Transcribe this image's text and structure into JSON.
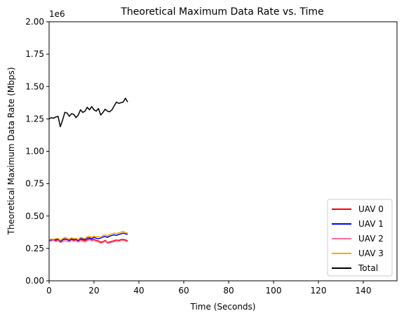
{
  "chart_data": {
    "type": "line",
    "title": "Theoretical Maximum Data Rate vs. Time",
    "xlabel": "Time (Seconds)",
    "ylabel": "Theoretical Maximum Data Rate (Mbps)",
    "y_offset_label": "1e6",
    "xlim": [
      0,
      155
    ],
    "ylim": [
      0,
      2000000
    ],
    "xticks": [
      0,
      20,
      40,
      60,
      80,
      100,
      120,
      140
    ],
    "xtick_labels": [
      "0",
      "20",
      "40",
      "60",
      "80",
      "100",
      "120",
      "140"
    ],
    "yticks": [
      0,
      250000,
      500000,
      750000,
      1000000,
      1250000,
      1500000,
      1750000,
      2000000
    ],
    "ytick_labels": [
      "0.00",
      "0.25",
      "0.50",
      "0.75",
      "1.00",
      "1.25",
      "1.50",
      "1.75",
      "2.00"
    ],
    "grid": false,
    "legend_position": "lower-right",
    "x": [
      0,
      1,
      2,
      3,
      4,
      5,
      6,
      7,
      8,
      9,
      10,
      11,
      12,
      13,
      14,
      15,
      16,
      17,
      18,
      19,
      20,
      21,
      22,
      23,
      24,
      25,
      26,
      27,
      28,
      29,
      30,
      31,
      32,
      33,
      34,
      35
    ],
    "series": [
      {
        "name": "UAV 0",
        "color": "#ff0000",
        "values": [
          315000,
          312000,
          318000,
          310000,
          320000,
          300000,
          315000,
          325000,
          318000,
          310000,
          322000,
          312000,
          318000,
          305000,
          320000,
          315000,
          310000,
          318000,
          325000,
          315000,
          320000,
          312000,
          308000,
          298000,
          302000,
          312000,
          295000,
          300000,
          305000,
          310000,
          315000,
          312000,
          318000,
          320000,
          315000,
          310000
        ]
      },
      {
        "name": "UAV 1",
        "color": "#0000ff",
        "values": [
          310000,
          315000,
          312000,
          318000,
          322000,
          305000,
          315000,
          322000,
          318000,
          312000,
          325000,
          318000,
          322000,
          312000,
          328000,
          322000,
          318000,
          330000,
          332000,
          325000,
          335000,
          328000,
          325000,
          330000,
          338000,
          342000,
          335000,
          345000,
          350000,
          355000,
          350000,
          358000,
          362000,
          368000,
          362000,
          360000
        ]
      },
      {
        "name": "UAV 2",
        "color": "#ff6f9c",
        "values": [
          305000,
          308000,
          312000,
          302000,
          310000,
          295000,
          302000,
          310000,
          305000,
          300000,
          312000,
          305000,
          310000,
          298000,
          312000,
          305000,
          300000,
          310000,
          318000,
          308000,
          312000,
          305000,
          300000,
          290000,
          295000,
          305000,
          290000,
          292000,
          298000,
          302000,
          308000,
          305000,
          310000,
          312000,
          308000,
          302000
        ]
      },
      {
        "name": "UAV 3",
        "color": "#ffa500",
        "values": [
          318000,
          322000,
          320000,
          325000,
          328000,
          312000,
          325000,
          335000,
          330000,
          322000,
          332000,
          325000,
          328000,
          318000,
          335000,
          330000,
          325000,
          340000,
          345000,
          335000,
          345000,
          338000,
          342000,
          335000,
          350000,
          355000,
          345000,
          358000,
          362000,
          368000,
          365000,
          370000,
          375000,
          382000,
          372000,
          370000
        ]
      },
      {
        "name": "Total",
        "color": "#000000",
        "values": [
          1250000,
          1260000,
          1255000,
          1265000,
          1270000,
          1190000,
          1240000,
          1300000,
          1295000,
          1270000,
          1290000,
          1285000,
          1260000,
          1280000,
          1320000,
          1300000,
          1310000,
          1340000,
          1320000,
          1345000,
          1320000,
          1310000,
          1330000,
          1280000,
          1300000,
          1325000,
          1310000,
          1305000,
          1320000,
          1350000,
          1380000,
          1370000,
          1375000,
          1380000,
          1410000,
          1380000
        ]
      }
    ]
  }
}
